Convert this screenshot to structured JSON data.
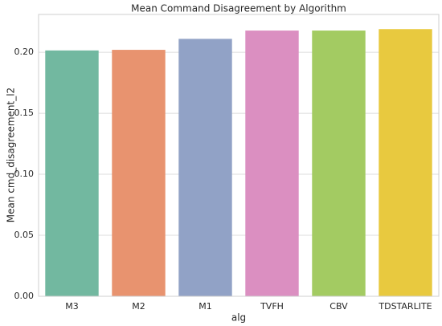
{
  "chart_data": {
    "type": "bar",
    "title": "Mean Command Disagreement by Algorithm",
    "x_label": "alg",
    "y_label": "Mean cmd_disagreement_l2",
    "categories": [
      "M3",
      "M2",
      "M1",
      "TVFH",
      "CBV",
      "TDSTARLITE"
    ],
    "values": [
      0.2015,
      0.202,
      0.211,
      0.2178,
      0.2178,
      0.219
    ],
    "colors": [
      "#72b8a0",
      "#e8936f",
      "#91a2c6",
      "#db8fc1",
      "#a3cb62",
      "#e8c93f"
    ],
    "ylim": [
      0,
      0.231
    ],
    "yticks": [
      {
        "value": 0,
        "label": "0.00"
      },
      {
        "value": 0.05,
        "label": "0.05"
      },
      {
        "value": 0.1,
        "label": "0.10"
      },
      {
        "value": 0.15,
        "label": "0.15"
      },
      {
        "value": 0.2,
        "label": "0.20"
      }
    ],
    "grid": true
  }
}
